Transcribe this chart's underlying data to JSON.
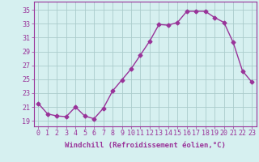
{
  "x": [
    0,
    1,
    2,
    3,
    4,
    5,
    6,
    7,
    8,
    9,
    10,
    11,
    12,
    13,
    14,
    15,
    16,
    17,
    18,
    19,
    20,
    21,
    22,
    23
  ],
  "y": [
    21.5,
    20.0,
    19.7,
    19.6,
    21.0,
    19.7,
    19.3,
    20.8,
    23.3,
    24.9,
    26.5,
    28.5,
    30.5,
    32.9,
    32.8,
    33.2,
    34.8,
    34.8,
    34.8,
    33.9,
    33.2,
    30.3,
    26.2,
    24.6
  ],
  "line_color": "#993399",
  "marker": "D",
  "markersize": 2.5,
  "linewidth": 1.0,
  "bg_color": "#d6f0f0",
  "grid_color": "#aacccc",
  "xlabel": "Windchill (Refroidissement éolien,°C)",
  "xlabel_fontsize": 6.5,
  "ylabel_ticks": [
    19,
    21,
    23,
    25,
    27,
    29,
    31,
    33,
    35
  ],
  "xtick_labels": [
    "0",
    "1",
    "2",
    "3",
    "4",
    "5",
    "6",
    "7",
    "8",
    "9",
    "10",
    "11",
    "12",
    "13",
    "14",
    "15",
    "16",
    "17",
    "18",
    "19",
    "20",
    "21",
    "22",
    "23"
  ],
  "ylim": [
    18.2,
    36.2
  ],
  "xlim": [
    -0.5,
    23.5
  ],
  "tick_fontsize": 6.0,
  "tick_color": "#993399",
  "spine_color": "#993399"
}
